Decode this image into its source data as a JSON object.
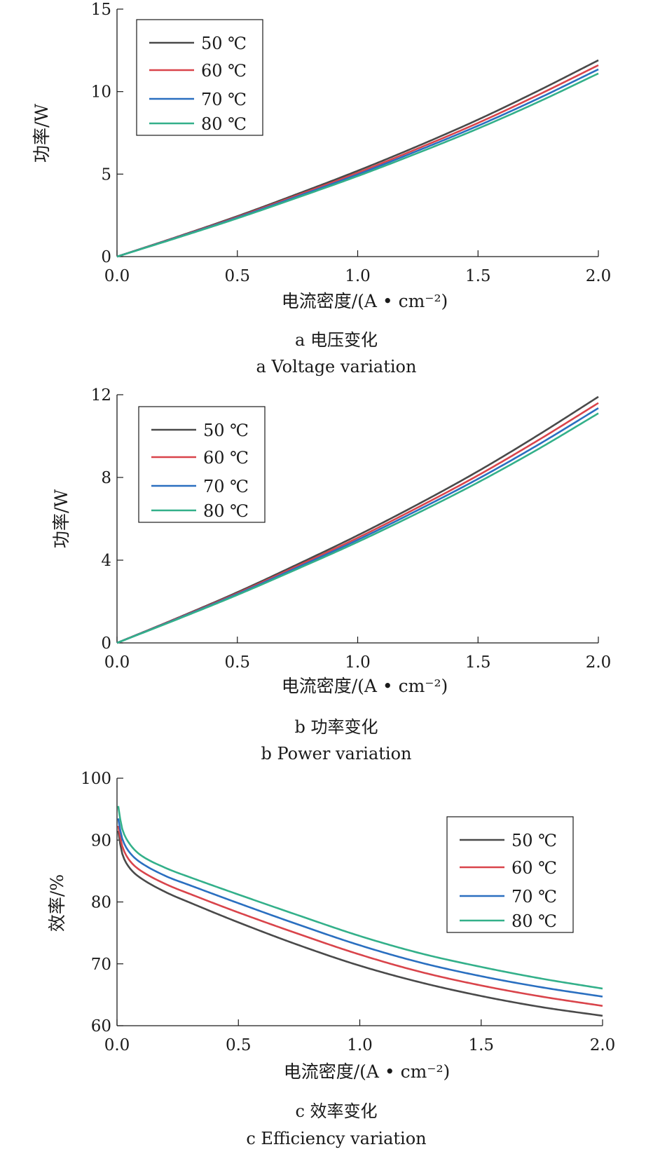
{
  "chart_data": [
    {
      "type": "line",
      "id": "a",
      "xlabel": "电流密度/(A • cm⁻²)",
      "ylabel": "功率/W",
      "xlim": [
        0,
        2.0
      ],
      "ylim": [
        0,
        15
      ],
      "xticks": [
        "0.0",
        "0.5",
        "1.0",
        "1.5",
        "2.0"
      ],
      "yticks": [
        "0",
        "5",
        "10",
        "15"
      ],
      "x": [
        0,
        0.25,
        0.5,
        0.75,
        1.0,
        1.25,
        1.5,
        1.75,
        2.0
      ],
      "series": [
        {
          "name": "50 ℃",
          "color": "#4a4a4a",
          "values": [
            0,
            1.2,
            2.45,
            3.8,
            5.2,
            6.7,
            8.3,
            10.05,
            11.9
          ]
        },
        {
          "name": "60 ℃",
          "color": "#d9444b",
          "values": [
            0,
            1.18,
            2.4,
            3.72,
            5.08,
            6.55,
            8.1,
            9.8,
            11.6
          ]
        },
        {
          "name": "70 ℃",
          "color": "#2a6fc0",
          "values": [
            0,
            1.16,
            2.36,
            3.65,
            4.98,
            6.42,
            7.93,
            9.58,
            11.35
          ]
        },
        {
          "name": "80 ℃",
          "color": "#33b08a",
          "values": [
            0,
            1.14,
            2.32,
            3.58,
            4.88,
            6.28,
            7.76,
            9.37,
            11.1
          ]
        }
      ],
      "legend_position": "top-left",
      "caption_cn": "a  电压变化",
      "caption_en": "a  Voltage variation"
    },
    {
      "type": "line",
      "id": "b",
      "xlabel": "电流密度/(A • cm⁻²)",
      "ylabel": "功率/W",
      "xlim": [
        0,
        2.0
      ],
      "ylim": [
        0,
        12
      ],
      "xticks": [
        "0.0",
        "0.5",
        "1.0",
        "1.5",
        "2.0"
      ],
      "yticks": [
        "0",
        "4",
        "8",
        "12"
      ],
      "x": [
        0,
        0.25,
        0.5,
        0.75,
        1.0,
        1.25,
        1.5,
        1.75,
        2.0
      ],
      "series": [
        {
          "name": "50 ℃",
          "color": "#4a4a4a",
          "values": [
            0,
            1.2,
            2.45,
            3.8,
            5.2,
            6.7,
            8.3,
            10.05,
            11.9
          ]
        },
        {
          "name": "60 ℃",
          "color": "#d9444b",
          "values": [
            0,
            1.18,
            2.4,
            3.72,
            5.08,
            6.55,
            8.1,
            9.8,
            11.6
          ]
        },
        {
          "name": "70 ℃",
          "color": "#2a6fc0",
          "values": [
            0,
            1.16,
            2.36,
            3.65,
            4.98,
            6.42,
            7.93,
            9.58,
            11.35
          ]
        },
        {
          "name": "80 ℃",
          "color": "#33b08a",
          "values": [
            0,
            1.14,
            2.32,
            3.58,
            4.88,
            6.28,
            7.76,
            9.37,
            11.1
          ]
        }
      ],
      "legend_position": "top-left",
      "caption_cn": "b  功率变化",
      "caption_en": "b  Power variation"
    },
    {
      "type": "line",
      "id": "c",
      "xlabel": "电流密度/(A • cm⁻²)",
      "ylabel": "效率/%",
      "xlim": [
        0,
        2.0
      ],
      "ylim": [
        60,
        100
      ],
      "xticks": [
        "0.0",
        "0.5",
        "1.0",
        "1.5",
        "2.0"
      ],
      "yticks": [
        "60",
        "70",
        "80",
        "90",
        "100"
      ],
      "x": [
        0.005,
        0.02,
        0.05,
        0.1,
        0.2,
        0.3,
        0.5,
        0.75,
        1.0,
        1.25,
        1.5,
        1.75,
        2.0
      ],
      "series": [
        {
          "name": "50 ℃",
          "color": "#4a4a4a",
          "values": [
            91.5,
            88.0,
            85.6,
            83.8,
            81.6,
            79.9,
            76.7,
            73.0,
            69.7,
            67.0,
            64.8,
            63.0,
            61.6
          ]
        },
        {
          "name": "60 ℃",
          "color": "#d9444b",
          "values": [
            92.3,
            89.2,
            86.8,
            85.0,
            82.9,
            81.3,
            78.3,
            74.8,
            71.5,
            68.7,
            66.5,
            64.7,
            63.2
          ]
        },
        {
          "name": "70 ℃",
          "color": "#2a6fc0",
          "values": [
            93.5,
            90.4,
            88.1,
            86.3,
            84.2,
            82.7,
            79.8,
            76.3,
            73.0,
            70.2,
            68.0,
            66.2,
            64.7
          ]
        },
        {
          "name": "80 ℃",
          "color": "#33b08a",
          "values": [
            95.5,
            92.0,
            89.5,
            87.5,
            85.5,
            84.0,
            81.2,
            77.8,
            74.5,
            71.7,
            69.5,
            67.6,
            66.0
          ]
        }
      ],
      "legend_position": "top-right",
      "caption_cn": "c  效率变化",
      "caption_en": "c  Efficiency variation"
    }
  ]
}
